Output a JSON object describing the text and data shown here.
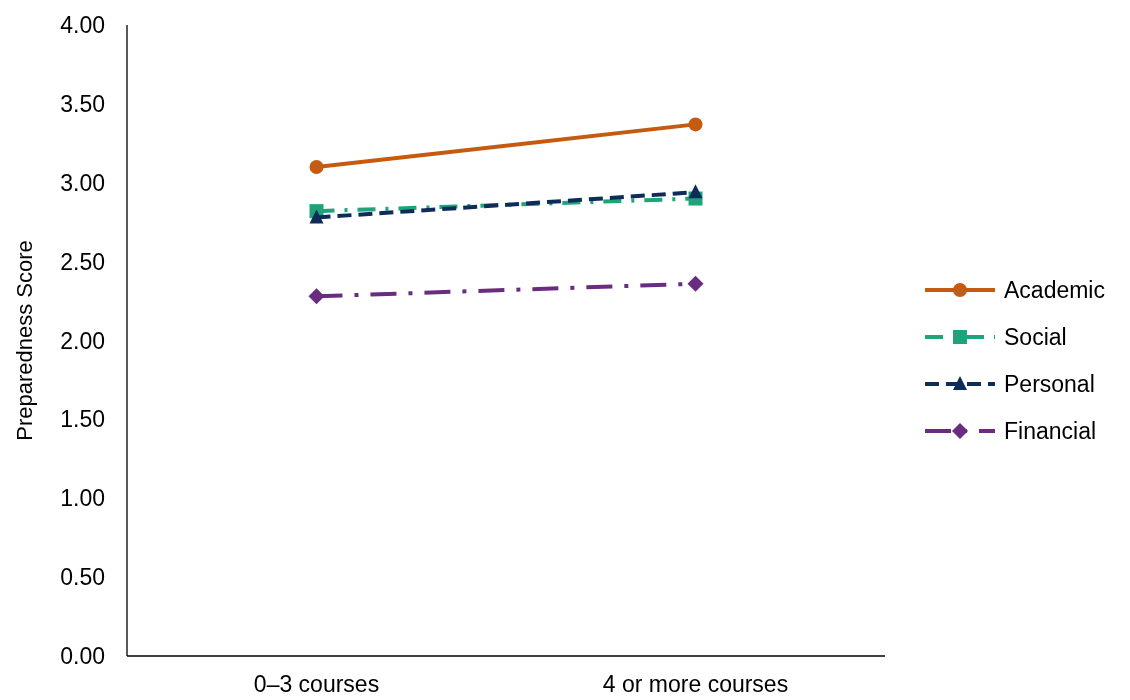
{
  "chart_data": {
    "type": "line",
    "ylabel": "Preparedness Score",
    "categories": [
      "0–3 courses",
      "4 or more courses"
    ],
    "series": [
      {
        "name": "Academic",
        "color": "#c55a11",
        "values": [
          3.1,
          3.37
        ],
        "marker": "circle",
        "line_style": "solid"
      },
      {
        "name": "Social",
        "color": "#1ea37a",
        "values": [
          2.82,
          2.9
        ],
        "marker": "square",
        "line_style": "dashdot"
      },
      {
        "name": "Personal",
        "color": "#0d2c5a",
        "values": [
          2.78,
          2.94
        ],
        "marker": "triangle",
        "line_style": "dashed"
      },
      {
        "name": "Financial",
        "color": "#6a2c7f",
        "values": [
          2.28,
          2.36
        ],
        "marker": "diamond",
        "line_style": "longdashdot"
      }
    ],
    "ylim": [
      0,
      4
    ],
    "yticks": [
      {
        "value": 0,
        "label": "0.00"
      },
      {
        "value": 0.5,
        "label": "0.50"
      },
      {
        "value": 1,
        "label": "1.00"
      },
      {
        "value": 1.5,
        "label": "1.50"
      },
      {
        "value": 2,
        "label": "2.00"
      },
      {
        "value": 2.5,
        "label": "2.50"
      },
      {
        "value": 3,
        "label": "3.00"
      },
      {
        "value": 3.5,
        "label": "3.50"
      },
      {
        "value": 4,
        "label": "4.00"
      }
    ],
    "grid": false,
    "legend": "right"
  }
}
